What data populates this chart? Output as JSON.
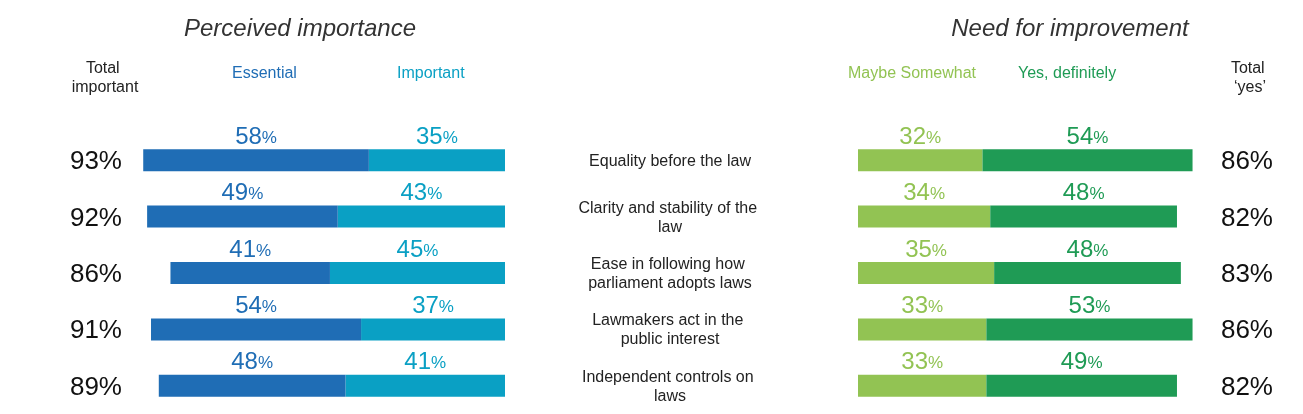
{
  "chart_data": [
    {
      "type": "bar",
      "orientation": "horizontal",
      "stacked": true,
      "title": "Perceived importance",
      "categories": [
        "Equality before the law",
        "Clarity and stability of the law",
        "Ease in following how parliament adopts laws",
        "Lawmakers act in the public interest",
        "Independent controls on laws"
      ],
      "legend": "top",
      "tick_labels": "y",
      "annotations": [
        "Total important"
      ],
      "totals": [
        "93%",
        "92%",
        "86%",
        "91%",
        "89%"
      ],
      "series": [
        {
          "name": "Important",
          "color": "#0aa0c4",
          "values": [
            35,
            43,
            45,
            37,
            41
          ],
          "value_labels": [
            "35%",
            "43%",
            "45%",
            "37%",
            "41%"
          ]
        },
        {
          "name": "Essential",
          "color": "#1f6db5",
          "values": [
            58,
            49,
            41,
            54,
            48
          ],
          "value_labels": [
            "58%",
            "49%",
            "41%",
            "54%",
            "48%"
          ]
        }
      ]
    },
    {
      "type": "bar",
      "orientation": "horizontal",
      "stacked": true,
      "title": "Need for improvement",
      "categories": [
        null,
        null,
        null,
        null,
        null
      ],
      "legend": "top",
      "tick_labels": false,
      "annotations": [
        "Total ‘yes’"
      ],
      "totals": [
        "86%",
        "82%",
        "83%",
        "86%",
        "82%"
      ],
      "series": [
        {
          "name": "Maybe Somewhat",
          "color": "#92c353",
          "values": [
            32,
            34,
            35,
            33,
            33
          ],
          "value_labels": [
            "32%",
            "34%",
            "35%",
            "33%",
            "33%"
          ]
        },
        {
          "name": "Yes, definitely",
          "color": "#1f9b55",
          "values": [
            54,
            48,
            48,
            53,
            49
          ],
          "value_labels": [
            "54%",
            "48%",
            "48%",
            "53%",
            "49%"
          ]
        }
      ]
    }
  ]
}
